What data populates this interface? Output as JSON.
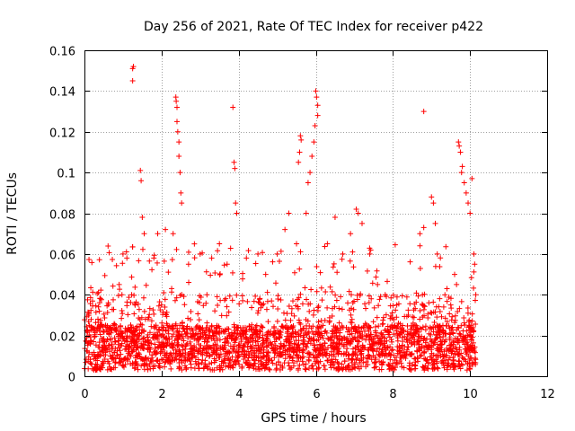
{
  "chart_data": {
    "type": "scatter",
    "title": "Day 256 of 2021, Rate Of TEC Index for receiver p422",
    "xlabel": "GPS time / hours",
    "ylabel": "ROTI / TECUs",
    "xlim": [
      0,
      12
    ],
    "ylim": [
      0,
      0.16
    ],
    "x_ticks": [
      0,
      2,
      4,
      6,
      8,
      10,
      12
    ],
    "y_ticks": [
      0,
      0.02,
      0.04,
      0.06,
      0.08,
      0.1,
      0.12,
      0.14,
      0.16
    ],
    "x_tick_labels": [
      "0",
      "2",
      "4",
      "6",
      "8",
      "10",
      "12"
    ],
    "y_tick_labels": [
      "0",
      "0.02",
      "0.04",
      "0.06",
      "0.08",
      "0.1",
      "0.12",
      "0.14",
      "0.16"
    ],
    "grid": true,
    "marker": "+",
    "marker_color": "#ff0000",
    "data_x_range": [
      0,
      10.15
    ],
    "points": [
      [
        1.25,
        0.151
      ],
      [
        1.27,
        0.152
      ],
      [
        1.25,
        0.145
      ],
      [
        2.37,
        0.137
      ],
      [
        2.38,
        0.135
      ],
      [
        2.4,
        0.132
      ],
      [
        2.4,
        0.125
      ],
      [
        2.42,
        0.12
      ],
      [
        2.45,
        0.115
      ],
      [
        2.45,
        0.108
      ],
      [
        2.48,
        0.1
      ],
      [
        2.5,
        0.09
      ],
      [
        2.52,
        0.085
      ],
      [
        3.85,
        0.132
      ],
      [
        3.88,
        0.105
      ],
      [
        3.9,
        0.102
      ],
      [
        3.92,
        0.085
      ],
      [
        3.95,
        0.08
      ],
      [
        5.6,
        0.118
      ],
      [
        5.62,
        0.116
      ],
      [
        5.58,
        0.11
      ],
      [
        5.55,
        0.105
      ],
      [
        6.0,
        0.14
      ],
      [
        6.02,
        0.137
      ],
      [
        6.05,
        0.133
      ],
      [
        6.05,
        0.128
      ],
      [
        5.98,
        0.123
      ],
      [
        5.95,
        0.115
      ],
      [
        5.9,
        0.108
      ],
      [
        5.85,
        0.1
      ],
      [
        5.8,
        0.095
      ],
      [
        5.75,
        0.08
      ],
      [
        8.8,
        0.13
      ],
      [
        9.7,
        0.115
      ],
      [
        9.72,
        0.113
      ],
      [
        9.75,
        0.11
      ],
      [
        9.8,
        0.103
      ],
      [
        9.78,
        0.1
      ],
      [
        9.85,
        0.095
      ],
      [
        9.9,
        0.09
      ],
      [
        9.95,
        0.085
      ],
      [
        10.05,
        0.097
      ],
      [
        10.0,
        0.08
      ],
      [
        1.45,
        0.101
      ],
      [
        1.47,
        0.096
      ],
      [
        1.5,
        0.078
      ],
      [
        1.55,
        0.07
      ],
      [
        0.35,
        0.028
      ],
      [
        0.55,
        0.025
      ],
      [
        0.9,
        0.045
      ],
      [
        1.0,
        0.06
      ],
      [
        1.1,
        0.058
      ],
      [
        1.8,
        0.058
      ],
      [
        1.9,
        0.07
      ],
      [
        2.1,
        0.072
      ],
      [
        2.3,
        0.07
      ],
      [
        2.7,
        0.055
      ],
      [
        3.0,
        0.06
      ],
      [
        3.3,
        0.058
      ],
      [
        3.5,
        0.065
      ],
      [
        3.7,
        0.055
      ],
      [
        4.2,
        0.058
      ],
      [
        4.5,
        0.06
      ],
      [
        4.7,
        0.05
      ],
      [
        5.0,
        0.06
      ],
      [
        5.2,
        0.072
      ],
      [
        5.3,
        0.08
      ],
      [
        5.5,
        0.065
      ],
      [
        6.3,
        0.065
      ],
      [
        6.5,
        0.078
      ],
      [
        6.7,
        0.06
      ],
      [
        6.9,
        0.07
      ],
      [
        7.05,
        0.082
      ],
      [
        7.1,
        0.08
      ],
      [
        7.2,
        0.075
      ],
      [
        7.4,
        0.06
      ],
      [
        7.6,
        0.045
      ],
      [
        7.8,
        0.04
      ],
      [
        8.1,
        0.035
      ],
      [
        8.4,
        0.03
      ],
      [
        8.7,
        0.07
      ],
      [
        8.8,
        0.073
      ],
      [
        9.0,
        0.088
      ],
      [
        9.05,
        0.085
      ],
      [
        9.1,
        0.075
      ],
      [
        9.15,
        0.06
      ],
      [
        9.5,
        0.035
      ],
      [
        10.1,
        0.06
      ],
      [
        10.12,
        0.055
      ],
      [
        10.15,
        0.04
      ],
      [
        9.6,
        0.05
      ],
      [
        9.65,
        0.045
      ]
    ]
  }
}
